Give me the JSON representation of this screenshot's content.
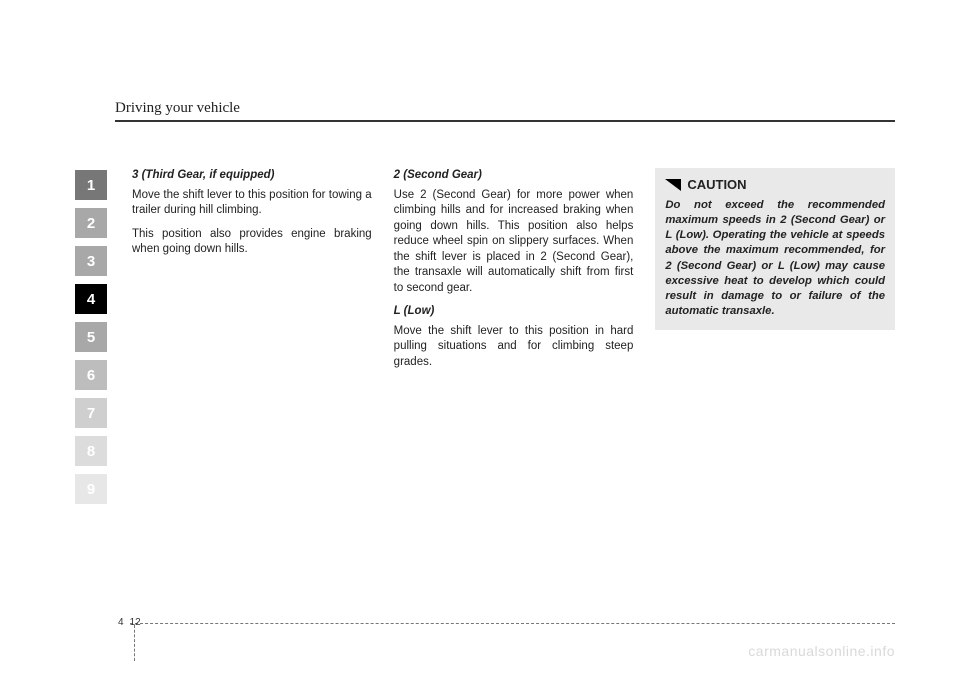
{
  "header": {
    "title": "Driving your vehicle"
  },
  "tabs": [
    {
      "n": "1",
      "bg": "#777777"
    },
    {
      "n": "2",
      "bg": "#a8a8a8"
    },
    {
      "n": "3",
      "bg": "#a8a8a8"
    },
    {
      "n": "4",
      "bg": "#000000"
    },
    {
      "n": "5",
      "bg": "#a8a8a8"
    },
    {
      "n": "6",
      "bg": "#bdbdbd"
    },
    {
      "n": "7",
      "bg": "#cfcfcf"
    },
    {
      "n": "8",
      "bg": "#dcdcdc"
    },
    {
      "n": "9",
      "bg": "#e7e7e7"
    }
  ],
  "col1": {
    "h1": "3 (Third Gear, if equipped)",
    "p1": "Move the shift lever to this position for towing a trailer during hill climbing.",
    "p2": "This position also provides engine braking when going down hills."
  },
  "col2": {
    "h1": "2 (Second Gear)",
    "p1": "Use 2 (Second Gear) for more power when climbing hills and for increased braking when going down hills. This position also helps reduce wheel spin on slippery surfaces. When the shift lever is placed in 2 (Second Gear), the transaxle will automatically shift from first to second gear.",
    "h2": "L (Low)",
    "p2": "Move the shift lever to this position in hard pulling situations and for climbing steep grades."
  },
  "col3": {
    "caution_label": "CAUTION",
    "caution_body": "Do not exceed the recommended maximum speeds in 2 (Second Gear) or L (Low). Operating the vehicle at speeds above the maximum recommended, for 2 (Second Gear) or L (Low) may cause excessive heat to develop which could result in damage to or failure of the automatic transaxle."
  },
  "footer": {
    "chapter": "4",
    "page": "12"
  },
  "watermark": "carmanualsonline.info",
  "style": {
    "page_bg": "#ffffff",
    "text_color": "#222222",
    "caution_bg": "#e9e9e9",
    "rule_color": "#333333"
  }
}
